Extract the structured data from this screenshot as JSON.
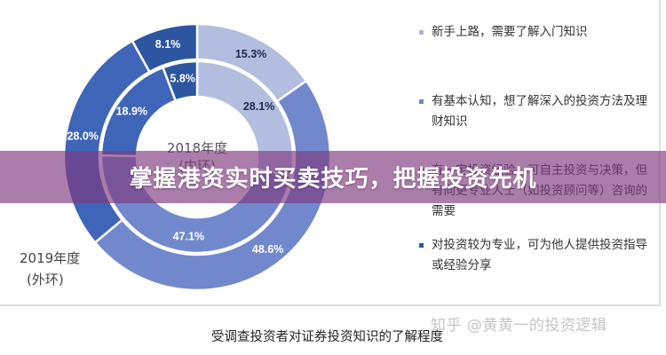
{
  "chart_data": {
    "type": "pie",
    "variant": "nested-donut",
    "title": "受调查投资者对证券投资知识的了解程度",
    "center_label": [
      "2018年度",
      "(内环)"
    ],
    "outer_ring_label": [
      "2019年度",
      "(外环)"
    ],
    "categories": [
      "新手上路，需要了解入门知识",
      "有基本认知，想了解深入的投资方法及理财知识",
      "有一定投资经验，可自主投资与决策，但有向更专业人士（如投资顾问等）咨询的需要",
      "对投资较为专业，可为他人提供投资指导或经验分享"
    ],
    "series": [
      {
        "name": "2019年度 (外环)",
        "values": [
          15.3,
          48.6,
          28.0,
          8.1
        ],
        "unit": "%"
      },
      {
        "name": "2018年度 (内环)",
        "values": [
          28.1,
          47.1,
          18.9,
          5.8
        ],
        "unit": "%"
      }
    ],
    "colors": [
      "#b3bde0",
      "#7189cc",
      "#3e65b8",
      "#2e55a0"
    ],
    "legend_position": "right"
  },
  "chart": {
    "outer_labels": [
      "15.3%",
      "48.6%",
      "28.0%",
      "8.1%"
    ],
    "inner_labels": [
      "28.1%",
      "47.1%",
      "18.9%",
      "5.8%"
    ],
    "center_year": "2018年度",
    "center_sub": "(内环)",
    "outer_year": "2019年度",
    "outer_sub": "(外环)"
  },
  "legend": {
    "items": [
      {
        "text": "新手上路，需要了解入门知识",
        "color": "#a9b3d8"
      },
      {
        "text": "有基本认知，想了解深入的投资方法及理财知识",
        "color": "#6f86c8"
      },
      {
        "text": "有一定投资经验，可自主投资与决策，但有向更专业人士（如投资顾问等）咨询的需要",
        "color": "#3e65b8"
      },
      {
        "text": "对投资较为专业，可为他人提供投资指导或经验分享",
        "color": "#2e55a0"
      }
    ]
  },
  "caption": "受调查投资者对证券投资知识的了解程度",
  "watermark": "知乎 @黄黄一的投资逻辑",
  "banner": {
    "text": "掌握港资实时买卖技巧，把握投资先机"
  }
}
